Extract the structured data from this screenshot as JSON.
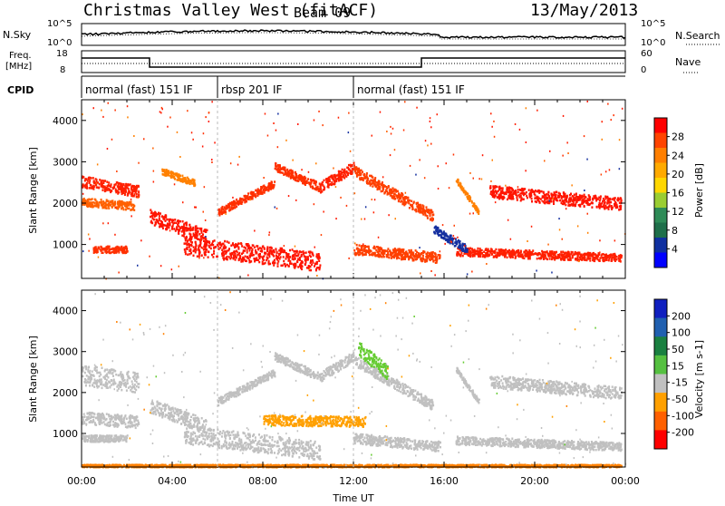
{
  "header": {
    "station": "Christmas Valley West (fitACF)",
    "beam": "Beam 09",
    "date": "13/May/2013"
  },
  "labels": {
    "nsky": "N.Sky",
    "freq_line1": "Freq.",
    "freq_line2": "[MHz]",
    "cpid": "CPID",
    "nsearch": "N.Search",
    "nave": "Nave",
    "time_axis": "Time UT",
    "slant_range": "Slant Range [km]"
  },
  "noise_panel": {
    "left_ticks": [
      "10^5",
      "10^0"
    ],
    "right_ticks": [
      "10^5",
      "10^0"
    ]
  },
  "freq_panel": {
    "left_ticks": [
      "18",
      "8"
    ],
    "right_ticks": [
      "60",
      "0"
    ]
  },
  "cpid_panel": {
    "segments": [
      {
        "label": "normal (fast) 151 IF",
        "start_hour": 0
      },
      {
        "label": "rbsp 201 IF",
        "start_hour": 6
      },
      {
        "label": "normal (fast) 151 IF",
        "start_hour": 12
      }
    ]
  },
  "power_colorbar": {
    "title": "Power [dB]",
    "ticks": [
      "28",
      "24",
      "20",
      "16",
      "12",
      "8",
      "4"
    ],
    "colors": [
      "#ff0000",
      "#ff4400",
      "#ff7f00",
      "#ffaa00",
      "#ffd700",
      "#9acd32",
      "#2e8b57",
      "#1f6f4a",
      "#1030a0",
      "#0000ff"
    ]
  },
  "velocity_colorbar": {
    "title": "Velocity [m s-1]",
    "ticks": [
      "200",
      "100",
      "50",
      "15",
      "-15",
      "-50",
      "-100",
      "-200"
    ],
    "colors": [
      "#1020c0",
      "#2060b0",
      "#1a8040",
      "#55c040",
      "#c0c0c0",
      "#ffa000",
      "#ff6000",
      "#ff0000"
    ]
  },
  "chart_data": {
    "type": "heatmap",
    "x_axis": {
      "label": "Time UT",
      "range_hours": [
        0,
        24
      ],
      "tick_labels": [
        "00:00",
        "04:00",
        "08:00",
        "12:00",
        "16:00",
        "20:00",
        "00:00"
      ]
    },
    "y_axis": {
      "label": "Slant Range [km]",
      "range_km": [
        180,
        4500
      ],
      "ticks": [
        1000,
        2000,
        3000,
        4000
      ]
    },
    "power_scatter_bands": [
      {
        "t0": 0.0,
        "r0": 2550,
        "t1": 2.5,
        "r1": 2300,
        "width": 280,
        "color": "#ff2000"
      },
      {
        "t0": 0.0,
        "r0": 2050,
        "t1": 2.3,
        "r1": 1950,
        "width": 200,
        "color": "#ff6000"
      },
      {
        "t0": 0.5,
        "r0": 900,
        "t1": 2.0,
        "r1": 900,
        "width": 160,
        "color": "#ff3000"
      },
      {
        "t0": 3.0,
        "r0": 1700,
        "t1": 5.5,
        "r1": 1200,
        "width": 350,
        "color": "#ff1500"
      },
      {
        "t0": 4.5,
        "r0": 1000,
        "t1": 10.5,
        "r1": 600,
        "width": 450,
        "color": "#ff1500"
      },
      {
        "t0": 3.5,
        "r0": 2800,
        "t1": 5.0,
        "r1": 2500,
        "width": 150,
        "color": "#ff8000"
      },
      {
        "t0": 6.0,
        "r0": 1800,
        "t1": 8.5,
        "r1": 2500,
        "width": 180,
        "color": "#ff3000"
      },
      {
        "t0": 8.5,
        "r0": 2900,
        "t1": 10.5,
        "r1": 2400,
        "width": 200,
        "color": "#ff3000"
      },
      {
        "t0": 10.5,
        "r0": 2400,
        "t1": 12.0,
        "r1": 2900,
        "width": 250,
        "color": "#ff2000"
      },
      {
        "t0": 12.0,
        "r0": 2800,
        "t1": 15.5,
        "r1": 1700,
        "width": 250,
        "color": "#ff4000"
      },
      {
        "t0": 12.0,
        "r0": 900,
        "t1": 15.8,
        "r1": 700,
        "width": 250,
        "color": "#ff4000"
      },
      {
        "t0": 16.5,
        "r0": 850,
        "t1": 23.8,
        "r1": 700,
        "width": 200,
        "color": "#ff2000"
      },
      {
        "t0": 18.0,
        "r0": 2300,
        "t1": 23.8,
        "r1": 2000,
        "width": 300,
        "color": "#ff1500"
      },
      {
        "t0": 16.5,
        "r0": 2600,
        "t1": 17.5,
        "r1": 1800,
        "width": 120,
        "color": "#ff8000"
      },
      {
        "t0": 15.5,
        "r0": 1400,
        "t1": 17.0,
        "r1": 900,
        "width": 200,
        "color": "#1530a0"
      }
    ],
    "velocity_scatter_bands": [
      {
        "t0": 0.0,
        "r0": 2450,
        "t1": 2.5,
        "r1": 2250,
        "width": 500,
        "color": "#c0c0c0"
      },
      {
        "t0": 0.0,
        "r0": 1400,
        "t1": 2.5,
        "r1": 1300,
        "width": 300,
        "color": "#c0c0c0"
      },
      {
        "t0": 0.0,
        "r0": 900,
        "t1": 2.0,
        "r1": 900,
        "width": 160,
        "color": "#c0c0c0"
      },
      {
        "t0": 3.0,
        "r0": 1700,
        "t1": 5.5,
        "r1": 1200,
        "width": 350,
        "color": "#c0c0c0"
      },
      {
        "t0": 4.5,
        "r0": 1000,
        "t1": 10.5,
        "r1": 600,
        "width": 450,
        "color": "#c0c0c0"
      },
      {
        "t0": 6.0,
        "r0": 1800,
        "t1": 8.5,
        "r1": 2500,
        "width": 180,
        "color": "#c0c0c0"
      },
      {
        "t0": 8.5,
        "r0": 2900,
        "t1": 10.5,
        "r1": 2400,
        "width": 200,
        "color": "#c0c0c0"
      },
      {
        "t0": 10.5,
        "r0": 2400,
        "t1": 12.0,
        "r1": 2900,
        "width": 250,
        "color": "#c0c0c0"
      },
      {
        "t0": 12.0,
        "r0": 2800,
        "t1": 15.5,
        "r1": 1700,
        "width": 250,
        "color": "#c0c0c0"
      },
      {
        "t0": 12.2,
        "r0": 3100,
        "t1": 13.5,
        "r1": 2500,
        "width": 350,
        "color": "#66cc33"
      },
      {
        "t0": 8.0,
        "r0": 1350,
        "t1": 12.5,
        "r1": 1300,
        "width": 250,
        "color": "#ffa000"
      },
      {
        "t0": 12.0,
        "r0": 900,
        "t1": 15.8,
        "r1": 700,
        "width": 250,
        "color": "#c0c0c0"
      },
      {
        "t0": 16.5,
        "r0": 850,
        "t1": 23.8,
        "r1": 700,
        "width": 200,
        "color": "#c0c0c0"
      },
      {
        "t0": 18.0,
        "r0": 2300,
        "t1": 23.8,
        "r1": 2000,
        "width": 300,
        "color": "#c0c0c0"
      },
      {
        "t0": 16.5,
        "r0": 2600,
        "t1": 17.5,
        "r1": 1800,
        "width": 120,
        "color": "#c0c0c0"
      },
      {
        "t0": 0.0,
        "r0": 230,
        "t1": 23.8,
        "r1": 230,
        "width": 60,
        "color": "#ff8000"
      }
    ]
  }
}
